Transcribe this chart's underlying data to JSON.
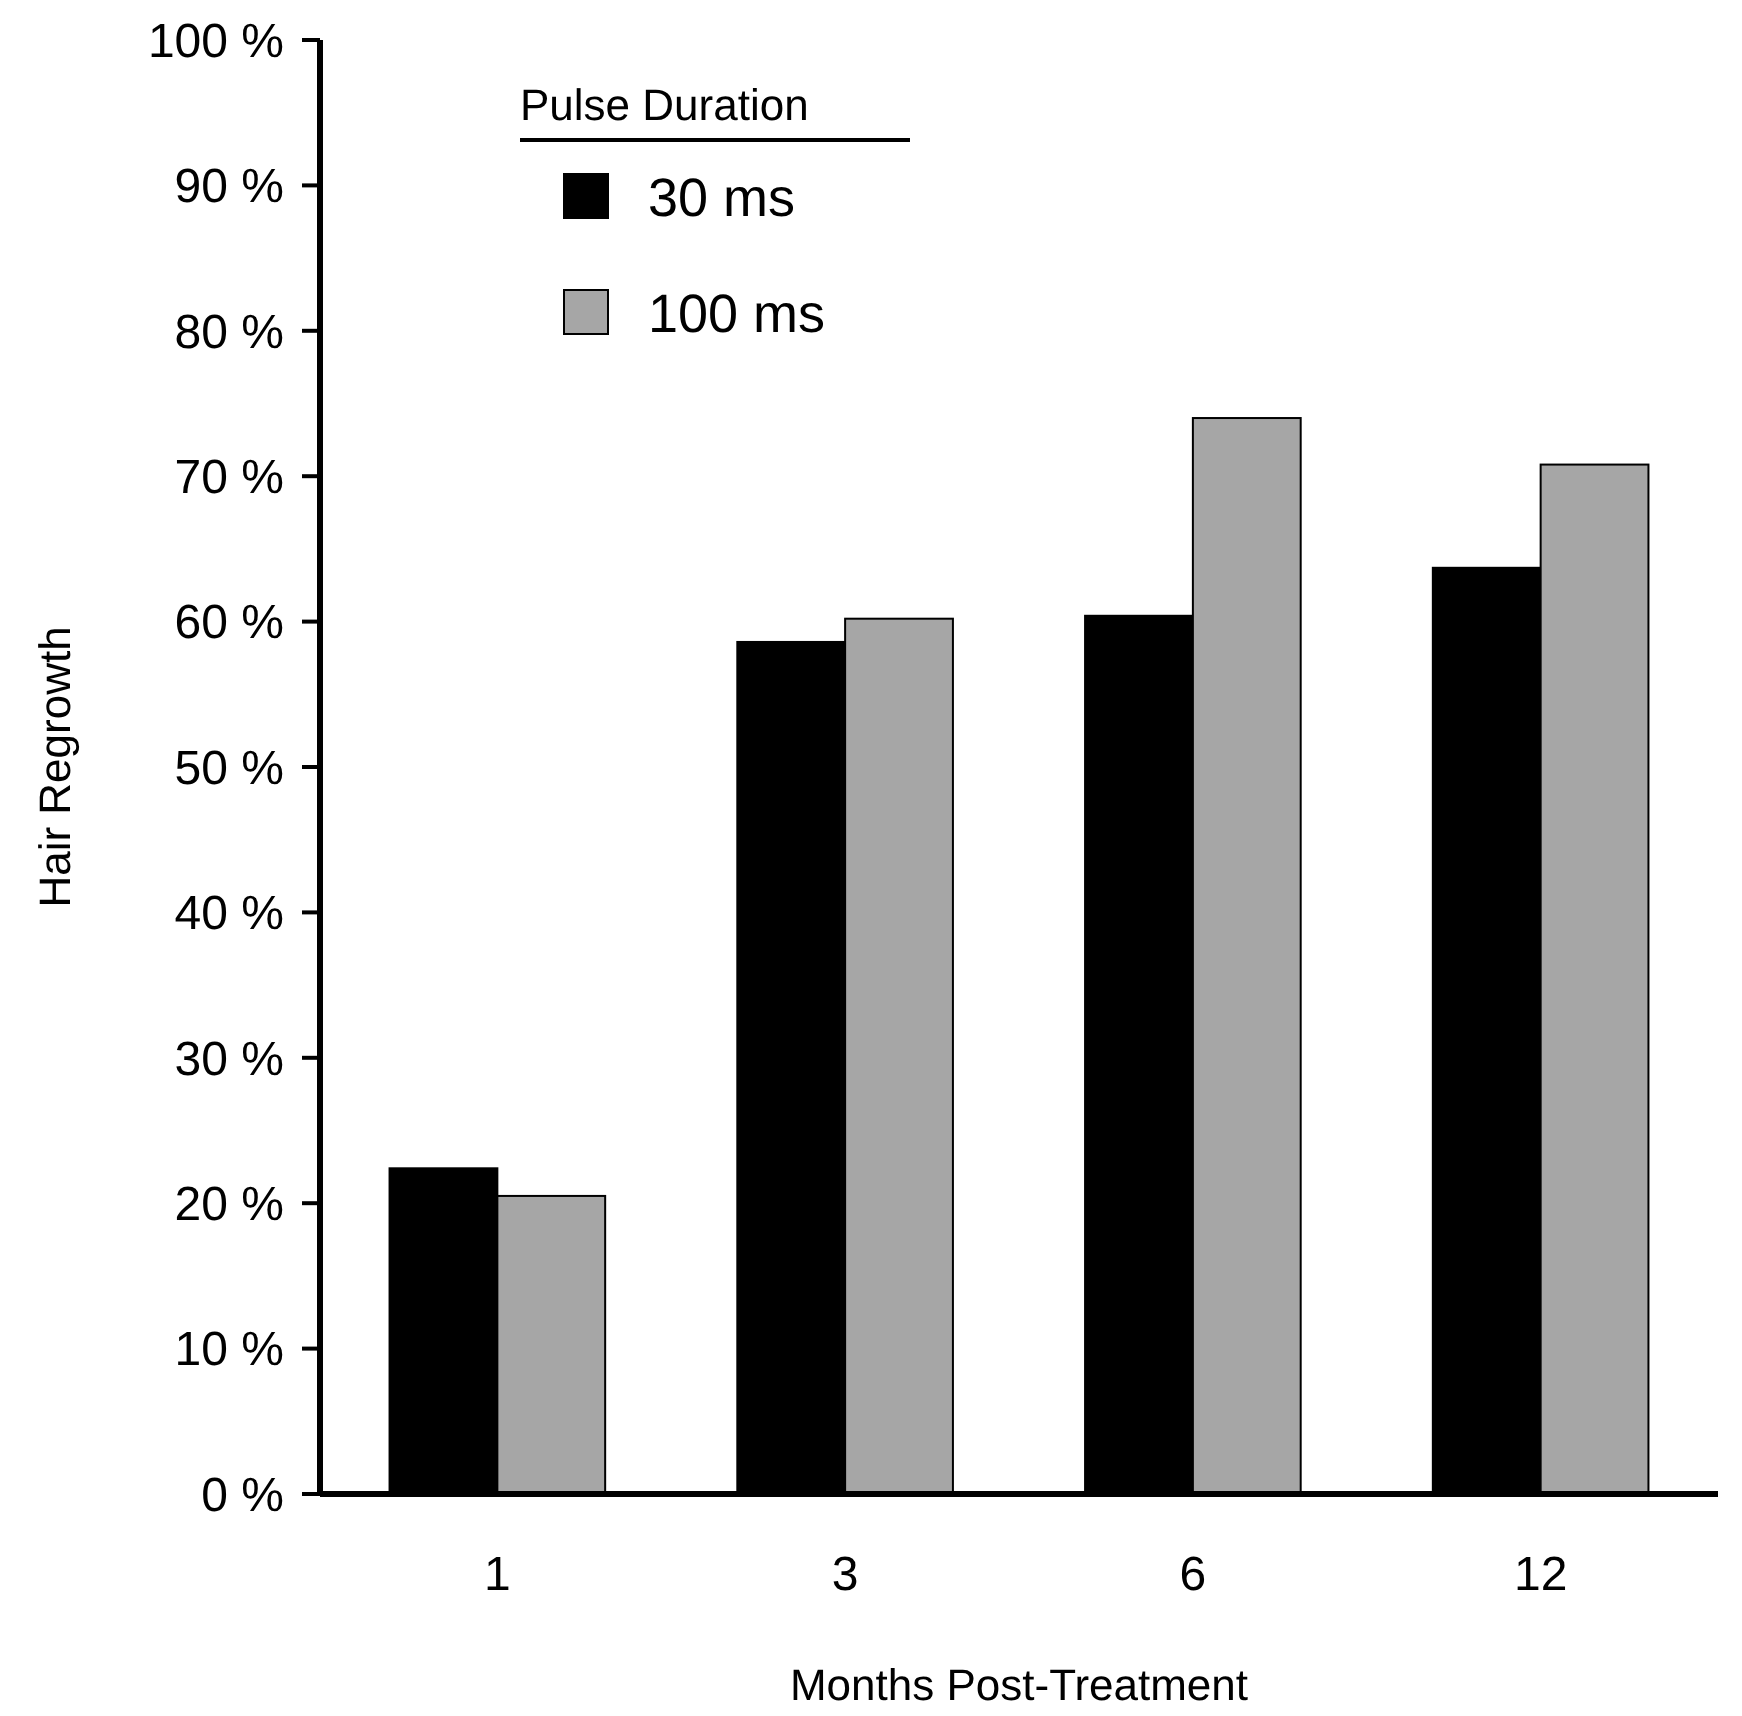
{
  "chart_data": {
    "type": "bar",
    "xlabel": "Months Post-Treatment",
    "ylabel": "Hair Regrowth",
    "legend_title": "Pulse Duration",
    "categories": [
      "1",
      "3",
      "6",
      "12"
    ],
    "series": [
      {
        "name": "30 ms",
        "color": "#000000",
        "values": [
          22.4,
          58.6,
          60.4,
          63.7
        ]
      },
      {
        "name": "100 ms",
        "color": "#a6a6a6",
        "values": [
          20.5,
          60.2,
          74,
          70.8
        ]
      }
    ],
    "ylim": [
      0,
      100
    ],
    "yticks": [
      {
        "value": 0,
        "label": "0 %"
      },
      {
        "value": 10,
        "label": "10 %"
      },
      {
        "value": 20,
        "label": "20 %"
      },
      {
        "value": 30,
        "label": "30 %"
      },
      {
        "value": 40,
        "label": "40 %"
      },
      {
        "value": 50,
        "label": "50 %"
      },
      {
        "value": 60,
        "label": "60 %"
      },
      {
        "value": 70,
        "label": "70 %"
      },
      {
        "value": 80,
        "label": "80 %"
      },
      {
        "value": 90,
        "label": "90 %"
      },
      {
        "value": 100,
        "label": "100 %"
      }
    ],
    "grid": false,
    "legend": "top left"
  }
}
